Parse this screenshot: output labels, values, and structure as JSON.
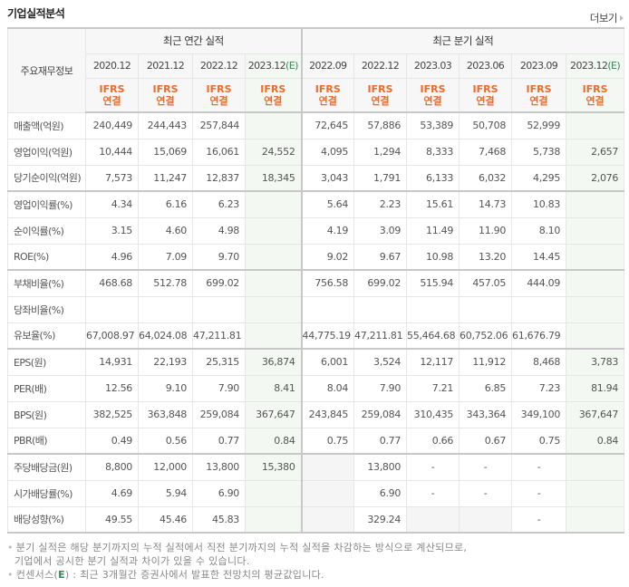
{
  "header": {
    "title": "기업실적분석",
    "more_label": "더보기"
  },
  "table": {
    "corner_label": "주요재무정보",
    "groups": {
      "annual": "최근 연간 실적",
      "quarterly": "최근 분기 실적"
    },
    "periods": {
      "annual": [
        {
          "label": "2020.12",
          "estimate": ""
        },
        {
          "label": "2021.12",
          "estimate": ""
        },
        {
          "label": "2022.12",
          "estimate": ""
        },
        {
          "label": "2023.12",
          "estimate": "(E)"
        }
      ],
      "quarterly": [
        {
          "label": "2022.09",
          "estimate": ""
        },
        {
          "label": "2022.12",
          "estimate": ""
        },
        {
          "label": "2023.03",
          "estimate": ""
        },
        {
          "label": "2023.06",
          "estimate": ""
        },
        {
          "label": "2023.09",
          "estimate": ""
        },
        {
          "label": "2023.12",
          "estimate": "(E)"
        }
      ]
    },
    "standard": {
      "line1": "IFRS",
      "line2": "연결"
    },
    "rows": [
      {
        "label": "매출액(억원)",
        "annual": [
          "240,449",
          "244,443",
          "257,844",
          ""
        ],
        "quarterly": [
          "72,645",
          "57,886",
          "53,389",
          "50,708",
          "52,999",
          ""
        ]
      },
      {
        "label": "영업이익(억원)",
        "annual": [
          "10,444",
          "15,069",
          "16,061",
          "24,552"
        ],
        "quarterly": [
          "4,095",
          "1,294",
          "8,333",
          "7,468",
          "5,738",
          "2,657"
        ]
      },
      {
        "label": "당기순이익(억원)",
        "annual": [
          "7,573",
          "11,247",
          "12,837",
          "18,345"
        ],
        "quarterly": [
          "3,043",
          "1,791",
          "6,133",
          "6,032",
          "4,295",
          "2,076"
        ]
      },
      {
        "label": "영업이익률(%)",
        "annual": [
          "4.34",
          "6.16",
          "6.23",
          ""
        ],
        "quarterly": [
          "5.64",
          "2.23",
          "15.61",
          "14.73",
          "10.83",
          ""
        ]
      },
      {
        "label": "순이익률(%)",
        "annual": [
          "3.15",
          "4.60",
          "4.98",
          ""
        ],
        "quarterly": [
          "4.19",
          "3.09",
          "11.49",
          "11.90",
          "8.10",
          ""
        ]
      },
      {
        "label": "ROE(%)",
        "annual": [
          "4.96",
          "7.09",
          "9.70",
          ""
        ],
        "quarterly": [
          "9.02",
          "9.67",
          "10.98",
          "13.20",
          "14.45",
          ""
        ]
      },
      {
        "label": "부채비율(%)",
        "annual": [
          "468.68",
          "512.78",
          "699.02",
          ""
        ],
        "quarterly": [
          "756.58",
          "699.02",
          "515.94",
          "457.05",
          "444.09",
          ""
        ]
      },
      {
        "label": "당좌비율(%)",
        "annual": [
          "",
          "",
          "",
          ""
        ],
        "quarterly": [
          "",
          "",
          "",
          "",
          "",
          ""
        ]
      },
      {
        "label": "유보율(%)",
        "annual": [
          "67,008.97",
          "64,024.08",
          "47,211.81",
          ""
        ],
        "quarterly": [
          "44,775.19",
          "47,211.81",
          "55,464.68",
          "60,752.06",
          "61,676.79",
          ""
        ]
      },
      {
        "label": "EPS(원)",
        "annual": [
          "14,931",
          "22,193",
          "25,315",
          "36,874"
        ],
        "quarterly": [
          "6,001",
          "3,524",
          "12,117",
          "11,912",
          "8,468",
          "3,783"
        ]
      },
      {
        "label": "PER(배)",
        "annual": [
          "12.56",
          "9.10",
          "7.90",
          "8.41"
        ],
        "quarterly": [
          "8.04",
          "7.90",
          "7.21",
          "6.85",
          "7.23",
          "81.94"
        ]
      },
      {
        "label": "BPS(원)",
        "annual": [
          "382,525",
          "363,848",
          "259,084",
          "367,647"
        ],
        "quarterly": [
          "243,845",
          "259,084",
          "310,435",
          "343,364",
          "349,100",
          "367,647"
        ]
      },
      {
        "label": "PBR(배)",
        "annual": [
          "0.49",
          "0.56",
          "0.77",
          "0.84"
        ],
        "quarterly": [
          "0.75",
          "0.77",
          "0.66",
          "0.67",
          "0.75",
          "0.84"
        ]
      },
      {
        "label": "주당배당금(원)",
        "annual": [
          "8,800",
          "12,000",
          "13,800",
          "15,380"
        ],
        "quarterly": [
          "",
          "13,800",
          "-",
          "-",
          "-",
          ""
        ]
      },
      {
        "label": "시가배당률(%)",
        "annual": [
          "4.69",
          "5.94",
          "6.90",
          ""
        ],
        "quarterly": [
          "",
          "6.90",
          "-",
          "-",
          "-",
          ""
        ]
      },
      {
        "label": "배당성향(%)",
        "annual": [
          "49.55",
          "45.46",
          "45.83",
          ""
        ],
        "quarterly": [
          "",
          "329.24",
          "",
          "",
          "-",
          ""
        ]
      }
    ]
  },
  "notes": {
    "line1": "분기 실적은 해당 분기까지의 누적 실적에서 직전 분기까지의 누적 실적을 차감하는 방식으로 계산되므로,",
    "line2": "기업에서 공시한 분기 실적과 차이가 있을 수 있습니다.",
    "line3_prefix": "컨센서스(",
    "line3_e": "E",
    "line3_suffix": ") : 최근 3개월간 증권사에서 발표한 전망치의 평균값입니다."
  },
  "colors": {
    "ifrs_orange": "#ee6a2a",
    "estimate_green": "#2e8b57",
    "estimate_bg": "#f3f9f2",
    "border_strong": "#c8c8c8"
  }
}
